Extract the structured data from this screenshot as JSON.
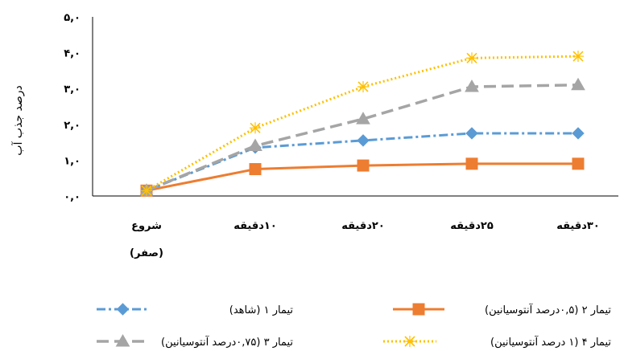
{
  "chart_data": {
    "type": "line",
    "title": "",
    "xlabel": "",
    "ylabel": "درصد جذب آب",
    "categories": [
      "شروع (صفر)",
      "۱۰دقیقه",
      "۲۰دقیقه",
      "۲۵دقیقه",
      "۳۰دقیقه"
    ],
    "y_tick_labels": [
      "۰,۰",
      "۱,۰",
      "۲,۰",
      "۳,۰",
      "۴,۰",
      "۵,۰"
    ],
    "ylim": [
      0,
      5
    ],
    "grid": false,
    "legend_position": "bottom",
    "series": [
      {
        "name": "تیمار ۱ (شاهد)",
        "values": [
          0.15,
          1.35,
          1.55,
          1.75,
          1.75
        ],
        "color": "#5b9bd5",
        "marker": "diamond",
        "dash": "dash-dot"
      },
      {
        "name": "تیمار ۲ (۰,۵درصد آنتوسیانین)",
        "values": [
          0.15,
          0.75,
          0.85,
          0.9,
          0.9
        ],
        "color": "#ed7d31",
        "marker": "square",
        "dash": "solid"
      },
      {
        "name": "تیمار ۳ (۰,۷۵درصد آنتوسیانین)",
        "values": [
          0.15,
          1.4,
          2.15,
          3.05,
          3.1
        ],
        "color": "#a5a5a5",
        "marker": "triangle",
        "dash": "long-dash"
      },
      {
        "name": "تیمار ۴ (۱ درصد آنتوسیانین)",
        "values": [
          0.15,
          1.9,
          3.05,
          3.85,
          3.9
        ],
        "color": "#ffc000",
        "marker": "x-star",
        "dash": "dotted"
      }
    ]
  }
}
